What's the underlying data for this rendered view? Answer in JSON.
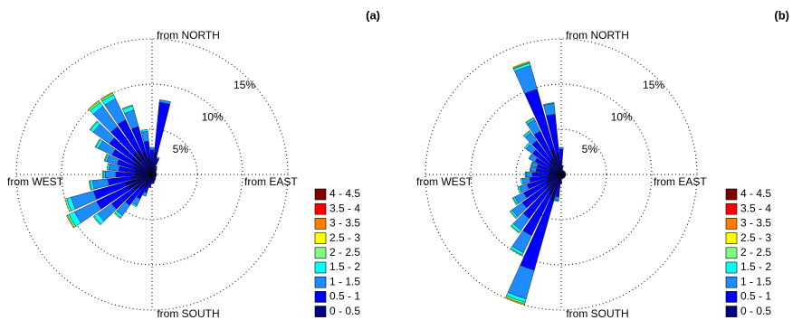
{
  "chart_data": [
    {
      "type": "wind_rose",
      "title": "(a)",
      "direction_labels": [
        "from NORTH",
        "from EAST",
        "from SOUTH",
        "from WEST"
      ],
      "directions": [
        0,
        10,
        20,
        30,
        40,
        50,
        60,
        70,
        80,
        90,
        100,
        110,
        120,
        130,
        140,
        150,
        160,
        170,
        180,
        190,
        200,
        210,
        220,
        230,
        240,
        250,
        260,
        270,
        280,
        290,
        300,
        310,
        320,
        330,
        340,
        350
      ],
      "rlim": [
        0,
        15
      ],
      "rticks": [
        {
          "value": 5,
          "label": "5%"
        },
        {
          "value": 10,
          "label": "10%"
        },
        {
          "value": 15,
          "label": "15%"
        }
      ],
      "grid": true,
      "legend": "lower right",
      "series": [
        {
          "name": "0 - 0.5",
          "color": "#000080",
          "values": [
            1.5,
            2.5,
            1,
            0.6,
            0.5,
            0.4,
            0.3,
            0.3,
            0.3,
            0.3,
            0.3,
            0.3,
            0.3,
            0.3,
            0.4,
            0.4,
            0.5,
            0.6,
            0.6,
            0.8,
            1.2,
            1.6,
            2,
            2.5,
            3,
            3,
            2.3,
            2,
            1.9,
            2,
            2.3,
            2.6,
            3,
            3,
            2.5,
            1.9
          ]
        },
        {
          "name": "0.5 - 1",
          "color": "#0000ff",
          "values": [
            1.2,
            5.5,
            0.8,
            0.4,
            0.3,
            0.2,
            0.2,
            0.2,
            0.2,
            0.2,
            0.2,
            0.2,
            0.2,
            0.2,
            0.2,
            0.3,
            0.3,
            0.4,
            0.4,
            0.6,
            0.9,
            1.4,
            2.2,
            3,
            3.8,
            3.7,
            2.6,
            2,
            1.8,
            2,
            2.6,
            3.2,
            3.5,
            3.7,
            3,
            1.8
          ]
        },
        {
          "name": "1 - 1.5",
          "color": "#1e8cff",
          "values": [
            0.3,
            0.3,
            0.2,
            0,
            0,
            0,
            0,
            0,
            0,
            0,
            0,
            0,
            0,
            0,
            0,
            0,
            0,
            0,
            0,
            0.1,
            0.4,
            0.8,
            1.4,
            1.9,
            2.7,
            2.6,
            1.7,
            1.2,
            1.1,
            1.2,
            1.7,
            2.2,
            2.8,
            2.6,
            1.9,
            1.1
          ]
        },
        {
          "name": "1.5 - 2",
          "color": "#00ffff",
          "values": [
            0,
            0,
            0,
            0,
            0,
            0,
            0,
            0,
            0,
            0,
            0,
            0,
            0,
            0,
            0,
            0,
            0,
            0,
            0,
            0,
            0,
            0.2,
            0.3,
            0.5,
            0.7,
            0.5,
            0.3,
            0.2,
            0.2,
            0.2,
            0.3,
            0.4,
            0.5,
            0.5,
            0.5,
            0.2
          ]
        },
        {
          "name": "2 - 2.5",
          "color": "#80ff80",
          "values": [
            0,
            0,
            0,
            0,
            0,
            0,
            0,
            0,
            0,
            0,
            0,
            0,
            0,
            0,
            0,
            0,
            0,
            0,
            0,
            0,
            0,
            0,
            0.1,
            0.1,
            0.2,
            0.2,
            0.1,
            0.1,
            0,
            0.1,
            0.1,
            0.1,
            0.2,
            0.2,
            0.1,
            0
          ]
        },
        {
          "name": "2.5 - 3",
          "color": "#ffff00",
          "values": [
            0,
            0,
            0,
            0,
            0,
            0,
            0,
            0,
            0,
            0,
            0,
            0,
            0,
            0,
            0,
            0,
            0,
            0,
            0,
            0,
            0,
            0,
            0,
            0,
            0.1,
            0,
            0,
            0,
            0,
            0,
            0,
            0,
            0.1,
            0.1,
            0,
            0
          ]
        },
        {
          "name": "3 - 3.5",
          "color": "#ff8000",
          "values": [
            0,
            0,
            0,
            0,
            0,
            0,
            0,
            0,
            0,
            0,
            0,
            0,
            0,
            0,
            0,
            0,
            0,
            0,
            0,
            0,
            0,
            0,
            0,
            0,
            0,
            0,
            0,
            0,
            0,
            0,
            0,
            0,
            0,
            0,
            0,
            0
          ]
        },
        {
          "name": "3.5 - 4",
          "color": "#ff0000",
          "values": [
            0,
            0,
            0,
            0,
            0,
            0,
            0,
            0,
            0,
            0,
            0,
            0,
            0,
            0,
            0,
            0,
            0,
            0,
            0,
            0,
            0,
            0,
            0,
            0,
            0,
            0,
            0,
            0,
            0,
            0,
            0,
            0,
            0,
            0,
            0,
            0
          ]
        },
        {
          "name": "4 - 4.5",
          "color": "#800000",
          "values": [
            0,
            0,
            0,
            0,
            0,
            0,
            0,
            0,
            0,
            0,
            0,
            0,
            0,
            0,
            0,
            0,
            0,
            0,
            0,
            0,
            0,
            0,
            0,
            0,
            0,
            0,
            0,
            0,
            0,
            0,
            0,
            0,
            0,
            0,
            0,
            0
          ]
        }
      ]
    },
    {
      "type": "wind_rose",
      "title": "(b)",
      "direction_labels": [
        "from NORTH",
        "from EAST",
        "from SOUTH",
        "from WEST"
      ],
      "directions": [
        0,
        10,
        20,
        30,
        40,
        50,
        60,
        70,
        80,
        90,
        100,
        110,
        120,
        130,
        140,
        150,
        160,
        170,
        180,
        190,
        200,
        210,
        220,
        230,
        240,
        250,
        260,
        270,
        280,
        290,
        300,
        310,
        320,
        330,
        340,
        350
      ],
      "rlim": [
        0,
        15
      ],
      "rticks": [
        {
          "value": 5,
          "label": "5%"
        },
        {
          "value": 10,
          "label": "10%"
        },
        {
          "value": 15,
          "label": "15%"
        }
      ],
      "grid": true,
      "legend": "lower right",
      "series": [
        {
          "name": "0 - 0.5",
          "color": "#000080",
          "values": [
            1.4,
            0.6,
            0.3,
            0.3,
            0.3,
            0.3,
            0.3,
            0.3,
            0.3,
            0.3,
            0.3,
            0.3,
            0.3,
            0.3,
            0.3,
            0.3,
            0.3,
            0.3,
            0.6,
            1.2,
            3,
            2.5,
            2.2,
            2,
            1.8,
            1.6,
            1.5,
            1.4,
            1.3,
            1.3,
            1.4,
            1.6,
            1.8,
            2,
            2.8,
            2.2
          ]
        },
        {
          "name": "0.5 - 1",
          "color": "#0000ff",
          "values": [
            1.4,
            0.4,
            0.2,
            0.2,
            0.2,
            0.2,
            0.2,
            0.2,
            0.2,
            0.2,
            0.2,
            0.2,
            0.2,
            0.2,
            0.2,
            0.2,
            0.2,
            0.2,
            0.4,
            1.3,
            8,
            5,
            3.8,
            3.3,
            2.8,
            2.3,
            2,
            1.8,
            1.5,
            1.5,
            1.8,
            2.3,
            2.8,
            3.3,
            7,
            4.5
          ]
        },
        {
          "name": "1 - 1.5",
          "color": "#1e8cff",
          "values": [
            0.2,
            0,
            0,
            0,
            0,
            0,
            0,
            0,
            0,
            0,
            0,
            0,
            0,
            0,
            0,
            0,
            0,
            0,
            0,
            0.4,
            3.3,
            2.1,
            1.6,
            1.4,
            1.1,
            0.9,
            0.8,
            0.7,
            0.6,
            0.6,
            0.7,
            0.9,
            1.1,
            1.4,
            2.7,
            1.2
          ]
        },
        {
          "name": "1.5 - 2",
          "color": "#00ffff",
          "values": [
            0,
            0,
            0,
            0,
            0,
            0,
            0,
            0,
            0,
            0,
            0,
            0,
            0,
            0,
            0,
            0,
            0,
            0,
            0,
            0.1,
            0.4,
            0.3,
            0.3,
            0.2,
            0.2,
            0.2,
            0.2,
            0.1,
            0.1,
            0.1,
            0.1,
            0.2,
            0.2,
            0.2,
            0.3,
            0.1
          ]
        },
        {
          "name": "2 - 2.5",
          "color": "#80ff80",
          "values": [
            0,
            0,
            0,
            0,
            0,
            0,
            0,
            0,
            0,
            0,
            0,
            0,
            0,
            0,
            0,
            0,
            0,
            0,
            0,
            0,
            0.2,
            0.1,
            0.1,
            0.1,
            0.1,
            0,
            0,
            0,
            0,
            0,
            0,
            0,
            0.1,
            0.1,
            0.1,
            0
          ]
        },
        {
          "name": "2.5 - 3",
          "color": "#ffff00",
          "values": [
            0,
            0,
            0,
            0,
            0,
            0,
            0,
            0,
            0,
            0,
            0,
            0,
            0,
            0,
            0,
            0,
            0,
            0,
            0,
            0,
            0.1,
            0,
            0,
            0,
            0,
            0,
            0,
            0,
            0,
            0,
            0,
            0,
            0,
            0,
            0.1,
            0
          ]
        },
        {
          "name": "3 - 3.5",
          "color": "#ff8000",
          "values": [
            0,
            0,
            0,
            0,
            0,
            0,
            0,
            0,
            0,
            0,
            0,
            0,
            0,
            0,
            0,
            0,
            0,
            0,
            0,
            0,
            0,
            0,
            0,
            0,
            0,
            0,
            0,
            0,
            0,
            0,
            0,
            0,
            0,
            0,
            0,
            0
          ]
        },
        {
          "name": "3.5 - 4",
          "color": "#ff0000",
          "values": [
            0,
            0,
            0,
            0,
            0,
            0,
            0,
            0,
            0,
            0,
            0,
            0,
            0,
            0,
            0,
            0,
            0,
            0,
            0,
            0,
            0,
            0,
            0,
            0,
            0,
            0,
            0,
            0,
            0,
            0,
            0,
            0,
            0,
            0,
            0,
            0
          ]
        },
        {
          "name": "4 - 4.5",
          "color": "#800000",
          "values": [
            0,
            0,
            0,
            0,
            0,
            0,
            0,
            0,
            0,
            0,
            0,
            0,
            0,
            0,
            0,
            0,
            0,
            0,
            0,
            0,
            0,
            0,
            0,
            0,
            0,
            0,
            0,
            0,
            0,
            0,
            0,
            0,
            0,
            0,
            0,
            0
          ]
        }
      ]
    }
  ]
}
